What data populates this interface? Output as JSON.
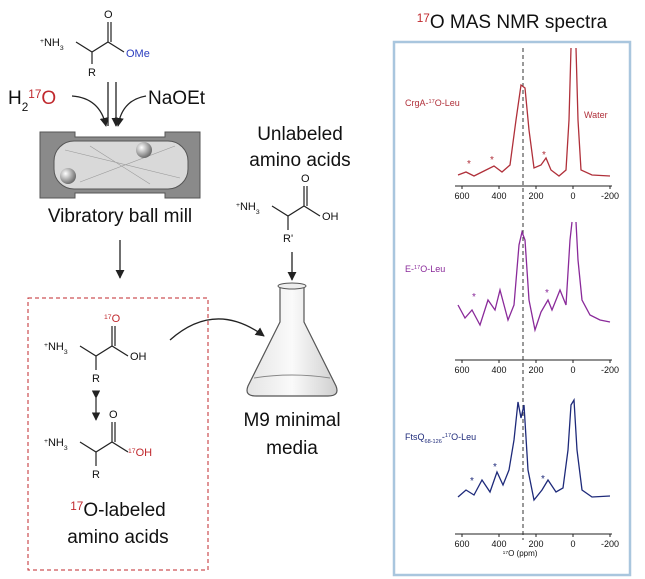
{
  "title": {
    "iso": "17",
    "rest": "O MAS NMR spectra"
  },
  "start_material": {
    "plus": "+",
    "nh": "NH",
    "sub": "3",
    "o": "O",
    "ome": "OMe",
    "r": "R"
  },
  "water": {
    "h": "H",
    "sub": "2",
    "iso": "17",
    "o": "O"
  },
  "base": "NaOEt",
  "mill": "Vibratory ball mill",
  "unlabeled": {
    "lines": [
      "Unlabeled",
      "amino acids"
    ],
    "structure": {
      "plus": "+",
      "nh": "NH",
      "sub": "3",
      "o": "O",
      "oh": "OH",
      "r": "R'"
    }
  },
  "media": [
    "M9 minimal",
    "media"
  ],
  "labeled": {
    "structure_a": {
      "plus": "+",
      "nh": "NH",
      "sub": "3",
      "iso": "17",
      "o": "O",
      "oh": "OH",
      "r": "R"
    },
    "structure_b": {
      "plus": "+",
      "nh": "NH",
      "sub": "3",
      "o": "O",
      "iso": "17",
      "oh": "OH",
      "r": "R"
    },
    "caption": {
      "iso": "17",
      "line1": "O-labeled",
      "line2": "amino acids"
    }
  },
  "spectra": {
    "panels": [
      {
        "name": {
          "pre": "CrgA-",
          "iso": "17",
          "post": "O-Leu"
        },
        "water": "Water",
        "asterisks": [
          "*",
          "*",
          "*"
        ],
        "xticks": [
          600,
          400,
          200,
          0,
          -200
        ]
      },
      {
        "name": {
          "pre": "E-",
          "iso": "17",
          "post": "O-Leu"
        },
        "asterisks": [
          "*",
          "*"
        ],
        "xticks": [
          600,
          400,
          200,
          0,
          -200
        ]
      },
      {
        "name": {
          "pre": "FtsQ",
          "sub": "68-126",
          "mid": "-",
          "iso": "17",
          "post": "O-Leu"
        },
        "asterisks": [
          "*",
          "*",
          "*"
        ],
        "xticks": [
          600,
          400,
          200,
          0,
          -200
        ]
      }
    ],
    "xlabel": {
      "iso": "17",
      "post": "O (ppm)"
    }
  }
}
